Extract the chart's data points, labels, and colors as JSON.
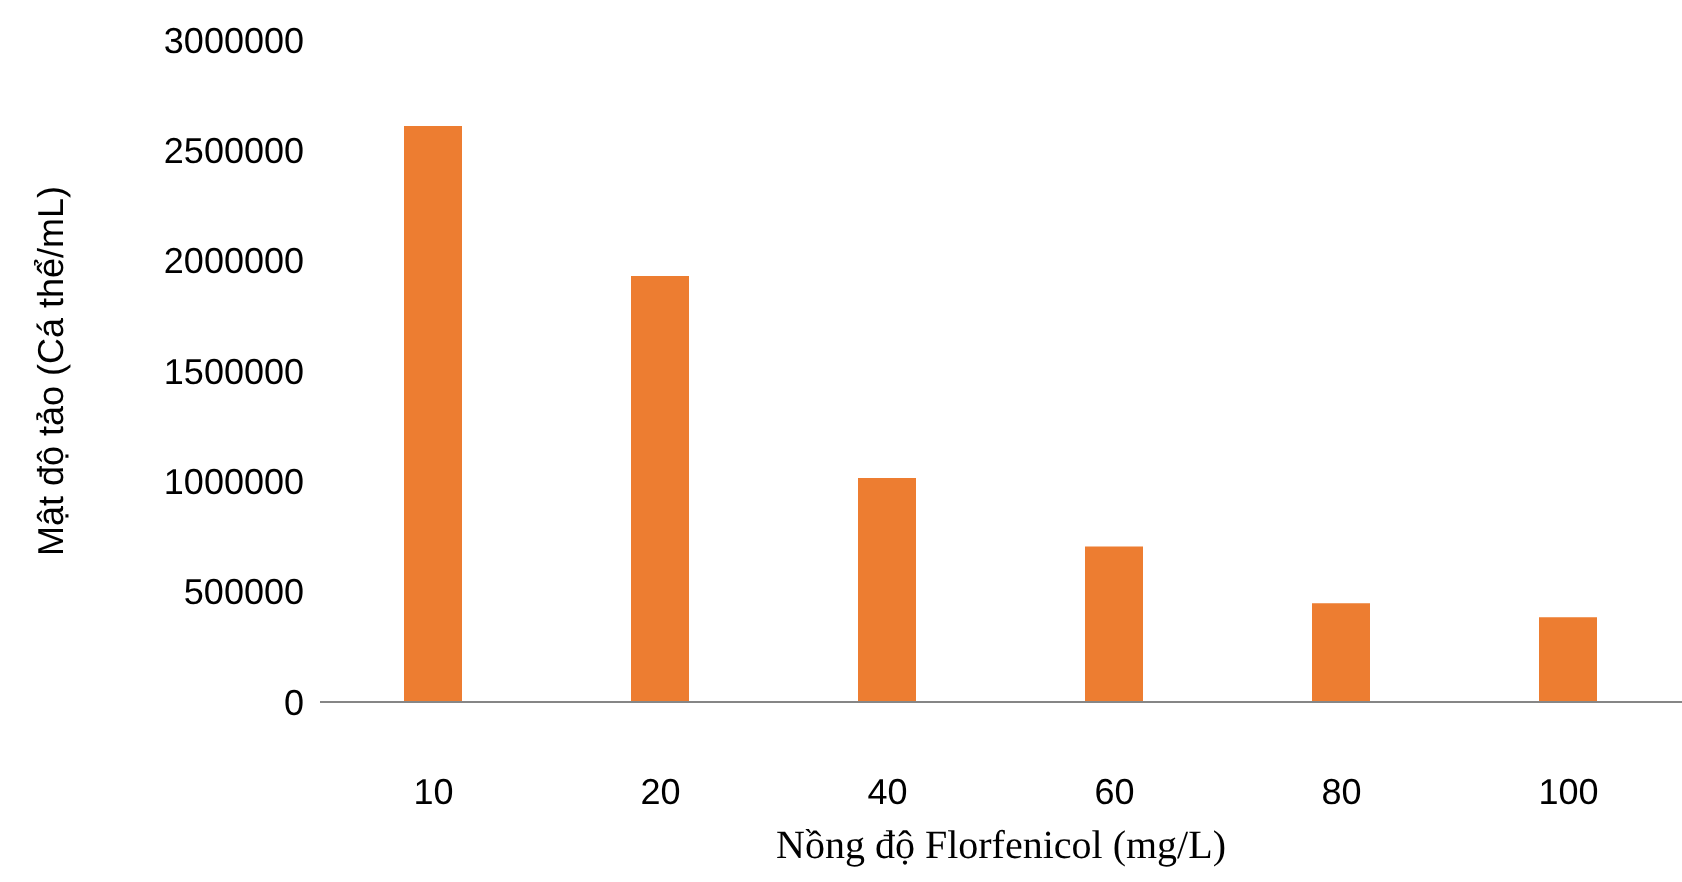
{
  "chart_data": {
    "type": "bar",
    "xlabel": "Nồng độ Florfenicol (mg/L)",
    "ylabel": "Mật độ tảo (Cá thể/mL)",
    "categories": [
      "10",
      "20",
      "40",
      "60",
      "80",
      "100"
    ],
    "values": [
      2610000,
      1930000,
      1015000,
      705000,
      448000,
      384000
    ],
    "color": "#ed7d31",
    "ylim": [
      0,
      3000000
    ],
    "yticks": [
      0,
      500000,
      1000000,
      1500000,
      2000000,
      2500000,
      3000000
    ],
    "grid": false,
    "legend": false
  }
}
